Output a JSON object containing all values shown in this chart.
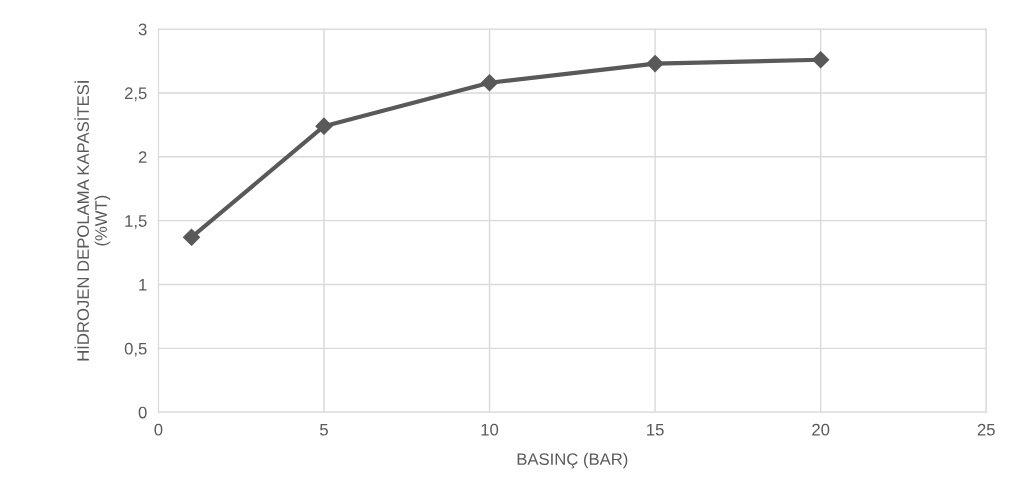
{
  "chart_data": {
    "type": "line",
    "xlabel": "BASINÇ (BAR)",
    "ylabel": "HİDROJEN DEPOLAMA KAPASİTESİ\n(%WT)",
    "x": [
      1,
      5,
      10,
      15,
      20
    ],
    "series": [
      {
        "color": "#595959",
        "values": [
          1.37,
          2.24,
          2.58,
          2.73,
          2.76
        ]
      }
    ],
    "xlim": [
      0,
      25
    ],
    "xticks": [
      0,
      5,
      10,
      15,
      20,
      25
    ],
    "ylim": [
      0,
      3
    ],
    "yticks": [
      0,
      {
        "value": 0.5,
        "label": "0,5"
      },
      1,
      {
        "value": 1.5,
        "label": "1,5"
      },
      2,
      {
        "value": 2.5,
        "label": "2,5"
      },
      3
    ],
    "grid": true,
    "marker": "diamond",
    "line_style": "solid"
  }
}
